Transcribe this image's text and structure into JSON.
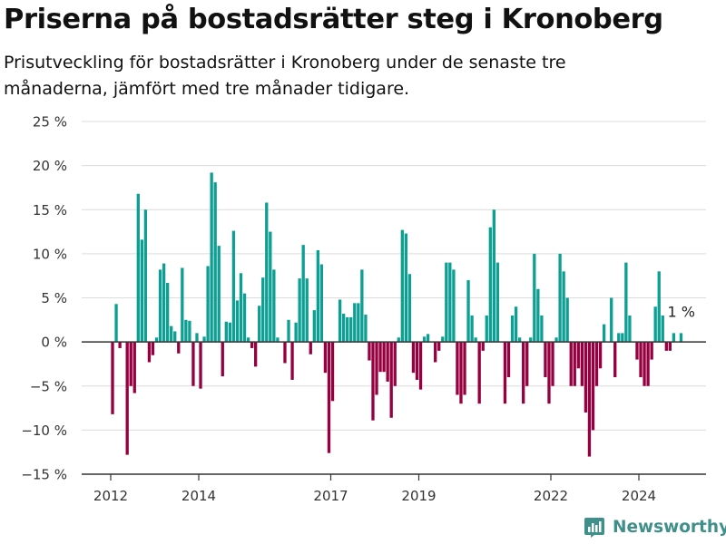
{
  "title": "Priserna på bostadsrätter steg i Kronoberg",
  "subtitle": "Prisutveckling för bostadsrätter i Kronoberg under de senaste tre månaderna, jämfört med tre månader tidigare.",
  "brand": {
    "name": "Newsworthy"
  },
  "colors": {
    "positive": "#0d9f94",
    "negative": "#960040",
    "grid": "#dcdcdc",
    "zero": "#333333",
    "text": "#333333"
  },
  "chart_data": {
    "type": "bar",
    "ylim": [
      -15,
      25
    ],
    "yticks": [
      -15,
      -10,
      -5,
      0,
      5,
      10,
      15,
      20,
      25
    ],
    "ytick_labels": [
      "−15 %",
      "−10 %",
      "−5 %",
      "0 %",
      "5 %",
      "10 %",
      "15 %",
      "20 %",
      "25 %"
    ],
    "xticks": [
      2012,
      2014,
      2017,
      2019,
      2022,
      2024
    ],
    "xtick_labels": [
      "2012",
      "2014",
      "2017",
      "2019",
      "2022",
      "2024"
    ],
    "x_start": "2012-01",
    "values": [
      -8.2,
      4.3,
      -0.7,
      0,
      -12.8,
      -5,
      -5.8,
      16.8,
      11.6,
      15,
      -2.3,
      -1.5,
      0.5,
      8.2,
      8.9,
      6.7,
      1.8,
      1.2,
      -1.3,
      8.4,
      2.5,
      2.4,
      -5,
      1,
      -5.3,
      0.6,
      8.6,
      19.2,
      18.1,
      10.9,
      -3.9,
      2.3,
      2.2,
      12.6,
      4.7,
      7.8,
      5.5,
      0.5,
      -0.7,
      -2.8,
      4.1,
      7.3,
      15.8,
      12.5,
      8.2,
      0.5,
      0,
      -2.4,
      2.5,
      -4.3,
      2.2,
      7.2,
      11,
      7.2,
      -1.4,
      3.6,
      10.4,
      8.8,
      -3.5,
      -12.6,
      -6.7,
      0,
      4.8,
      3.2,
      2.8,
      2.8,
      4.4,
      4.4,
      8.2,
      3.1,
      -2.1,
      -8.9,
      -6,
      -3.4,
      -3.4,
      -4.5,
      -8.6,
      -5,
      0.5,
      12.7,
      12.3,
      7.7,
      -3.5,
      -4.3,
      -5.4,
      0.6,
      0.9,
      0,
      -2.3,
      -1,
      0.6,
      9,
      9,
      8.2,
      -6,
      -7,
      -6,
      7,
      3,
      0.5,
      -7,
      -1,
      3,
      13,
      15,
      9,
      0,
      -7,
      -4,
      3,
      4,
      0.5,
      -7,
      -5,
      0.5,
      10,
      6,
      3,
      -4,
      -7,
      -5,
      0.5,
      10,
      8,
      5,
      -5,
      -5,
      -3,
      -5,
      -8,
      -13,
      -10,
      -5,
      -3,
      2,
      0,
      5,
      -4,
      1,
      1,
      9,
      3,
      0,
      -2,
      -4,
      -5,
      -5,
      -2,
      4,
      8,
      3,
      -1,
      -1,
      1,
      0,
      1
    ],
    "annotation": {
      "text": "1 %"
    }
  }
}
